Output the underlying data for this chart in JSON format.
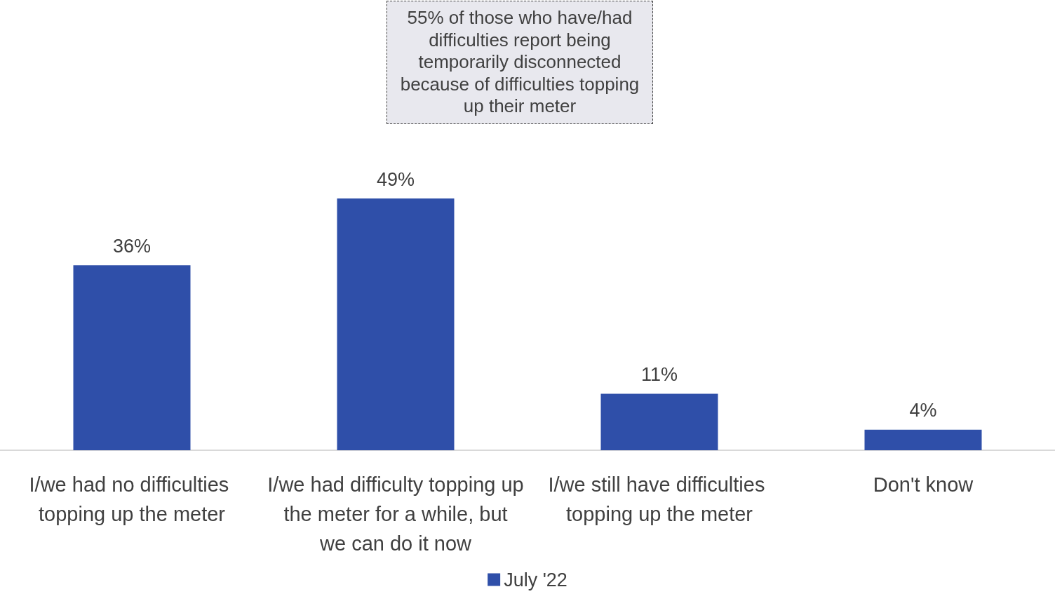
{
  "chart_data": {
    "type": "bar",
    "categories": [
      "I/we had no difficulties topping up the meter",
      "I/we had difficulty topping up the meter for a while, but we can do it now",
      "I/we still have difficulties topping up the meter",
      "Don't know"
    ],
    "series": [
      {
        "name": "July '22",
        "color": "#2f4fa9",
        "values": [
          36,
          49,
          11,
          4
        ],
        "value_labels": [
          "36%",
          "49%",
          "11%",
          "4%"
        ]
      }
    ],
    "annotations": [
      "55% of those who have/had difficulties report being temporarily disconnected because of difficulties topping up their meter"
    ],
    "legend": "bottom",
    "grid": false
  }
}
